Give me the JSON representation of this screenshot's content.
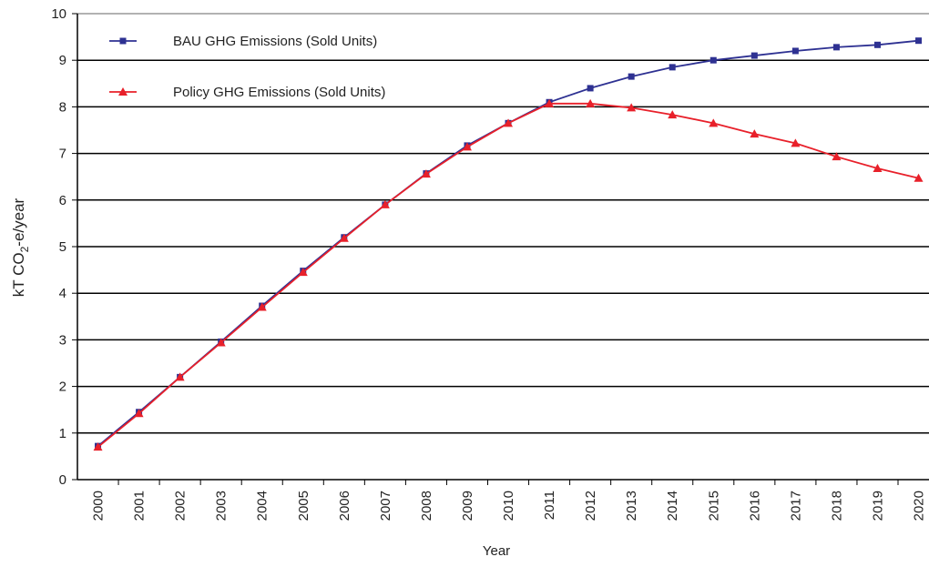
{
  "chart_data": {
    "type": "line",
    "x_label": "Year",
    "y_label": [
      "kT CO",
      "2",
      "-e/year"
    ],
    "categories": [
      "2000",
      "2001",
      "2002",
      "2003",
      "2004",
      "2005",
      "2006",
      "2007",
      "2008",
      "2009",
      "2010",
      "2011",
      "2012",
      "2013",
      "2014",
      "2015",
      "2016",
      "2017",
      "2018",
      "2019",
      "2020"
    ],
    "series": [
      {
        "name": "BAU GHG Emissions (Sold Units)",
        "color": "#2e3192",
        "marker": "square",
        "values": [
          0.72,
          1.45,
          2.2,
          2.96,
          3.73,
          4.48,
          5.2,
          5.9,
          6.57,
          7.17,
          7.65,
          8.1,
          8.4,
          8.65,
          8.85,
          9.0,
          9.1,
          9.2,
          9.28,
          9.33,
          9.42
        ]
      },
      {
        "name": "Policy GHG Emissions (Sold Units)",
        "color": "#e8202a",
        "marker": "triangle",
        "values": [
          0.7,
          1.42,
          2.2,
          2.94,
          3.7,
          4.45,
          5.18,
          5.9,
          6.56,
          7.14,
          7.65,
          8.07,
          8.07,
          7.98,
          7.83,
          7.65,
          7.42,
          7.22,
          6.93,
          6.68,
          6.47
        ]
      }
    ],
    "ylim": [
      0,
      10
    ],
    "yticks": [
      0,
      1,
      2,
      3,
      4,
      5,
      6,
      7,
      8,
      9,
      10
    ],
    "grid": true,
    "legend": "top-left"
  }
}
